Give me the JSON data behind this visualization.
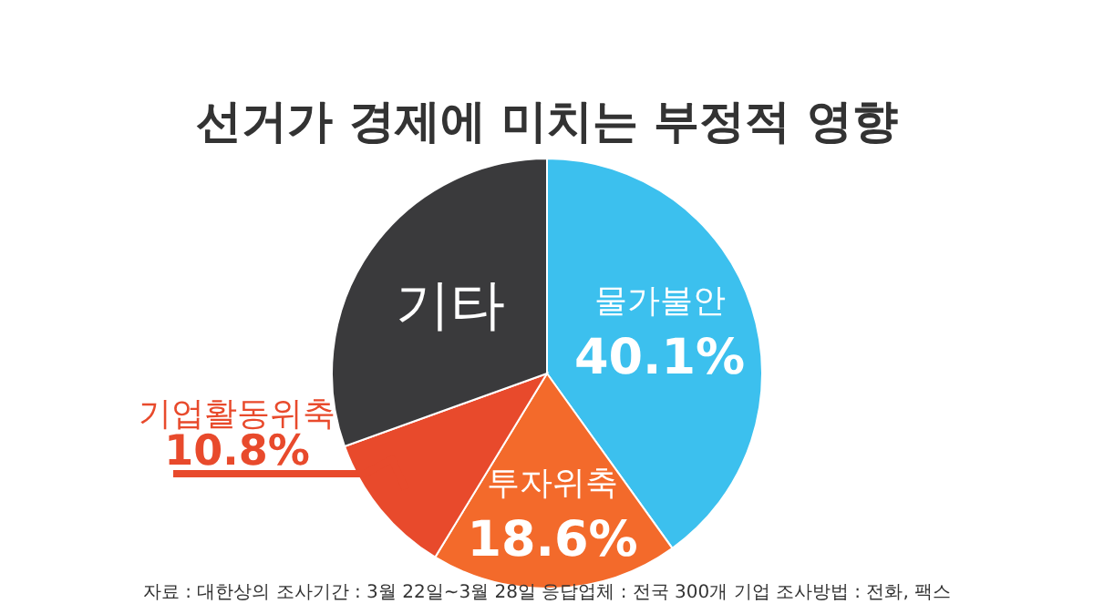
{
  "chart_data": {
    "type": "pie",
    "title": "선거가 경제에 미치는 부정적 영향",
    "categories": [
      "물가불안",
      "투자위축",
      "기업활동위축",
      "기타"
    ],
    "values": [
      40.1,
      18.6,
      10.8,
      30.5
    ],
    "value_labels": [
      "40.1%",
      "18.6%",
      "10.8%",
      null
    ],
    "colors": [
      "#3cc0ee",
      "#f36a2b",
      "#e84a2c",
      "#3a3a3c"
    ],
    "annotations": [
      "자료 : 대한상의   조사기간 : 3월 22일~3월 28일  응답업체 : 전국 300개 기업  조사방법 : 전화, 팩스"
    ]
  }
}
